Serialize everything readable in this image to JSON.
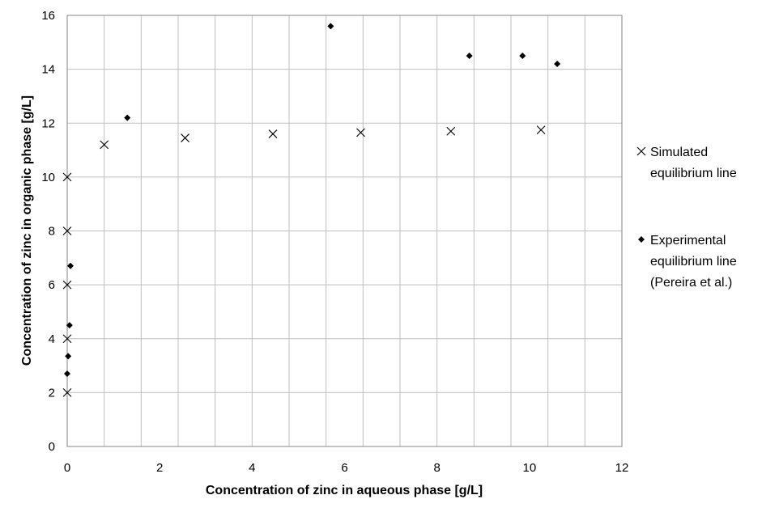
{
  "chart_data": {
    "type": "scatter",
    "xlabel": "Concentration of zinc in aqueous phase [g/L]",
    "ylabel": "Concentration of zinc in organic phase [g/L]",
    "xlim": [
      0,
      12
    ],
    "ylim": [
      0,
      16
    ],
    "x_ticks": [
      "0",
      "2",
      "4",
      "6",
      "8",
      "10",
      "12"
    ],
    "y_ticks": [
      "0",
      "2",
      "4",
      "6",
      "8",
      "10",
      "12",
      "14",
      "16"
    ],
    "x_minor_step": 0.8,
    "grid": true,
    "legend_position": "right",
    "series": [
      {
        "name": "Simulated equilibrium line",
        "name_lines": [
          "Simulated",
          "equilibrium line"
        ],
        "marker": "x",
        "color": "#000000",
        "points": [
          {
            "x": 0.0,
            "y": 2.0
          },
          {
            "x": 0.0,
            "y": 4.0
          },
          {
            "x": 0.0,
            "y": 6.0
          },
          {
            "x": 0.0,
            "y": 8.0
          },
          {
            "x": 0.0,
            "y": 10.0
          },
          {
            "x": 0.8,
            "y": 11.2
          },
          {
            "x": 2.55,
            "y": 11.45
          },
          {
            "x": 4.45,
            "y": 11.6
          },
          {
            "x": 6.35,
            "y": 11.65
          },
          {
            "x": 8.3,
            "y": 11.7
          },
          {
            "x": 10.25,
            "y": 11.75
          }
        ]
      },
      {
        "name": "Experimental equilibrium line (Pereira et al.)",
        "name_lines": [
          "Experimental",
          "equilibrium line",
          "(Pereira et al.)"
        ],
        "marker": "diamond",
        "color": "#000000",
        "points": [
          {
            "x": 0.0,
            "y": 2.7
          },
          {
            "x": 0.02,
            "y": 3.35
          },
          {
            "x": 0.05,
            "y": 4.5
          },
          {
            "x": 0.07,
            "y": 6.7
          },
          {
            "x": 1.3,
            "y": 12.2
          },
          {
            "x": 5.7,
            "y": 15.6
          },
          {
            "x": 8.7,
            "y": 14.5
          },
          {
            "x": 9.85,
            "y": 14.5
          },
          {
            "x": 10.6,
            "y": 14.2
          }
        ]
      }
    ]
  }
}
